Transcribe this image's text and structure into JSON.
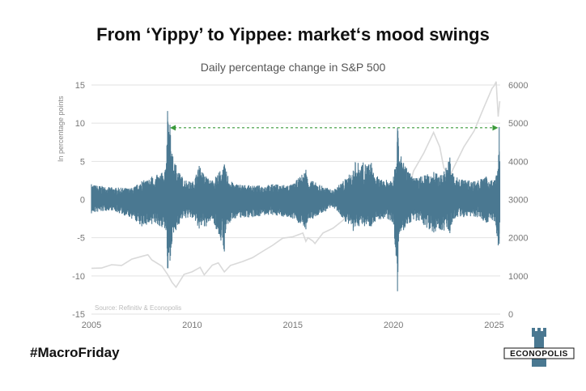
{
  "title": "From ‘Yippy’ to Yippee: market‘s mood swings",
  "hashtag": "#MacroFriday",
  "brand": "ECONOPOLIS",
  "colors": {
    "series": "#4a7891",
    "index": "#d9d9d9",
    "annotation": "#3a9a3a",
    "grid": "#e2e2e2"
  },
  "chart_data": {
    "type": "line",
    "title": "Daily percentage change in S&P 500",
    "ylabel": "In percentage points",
    "source": "Source: Refinitiv & Econopolis",
    "xlim": [
      2005,
      2025.3
    ],
    "xticks": [
      2005,
      2010,
      2015,
      2020,
      2025
    ],
    "ylim": [
      -15,
      15
    ],
    "yticks": [
      15,
      10,
      5,
      0,
      -5,
      -10,
      -15
    ],
    "y2lim": [
      0,
      6000
    ],
    "y2ticks": [
      6000,
      5000,
      4000,
      3000,
      2000,
      1000,
      0
    ],
    "series": [
      {
        "axis": "left",
        "style": "daily-change",
        "x": [
          2005.0,
          2006.0,
          2007.0,
          2007.5,
          2008.0,
          2008.5,
          2008.7,
          2008.78,
          2008.8,
          2008.9,
          2009.0,
          2009.2,
          2009.5,
          2010.0,
          2010.35,
          2010.7,
          2011.0,
          2011.6,
          2011.65,
          2012.0,
          2013.0,
          2014.0,
          2015.0,
          2015.65,
          2015.7,
          2016.0,
          2017.0,
          2018.0,
          2018.1,
          2018.9,
          2019.0,
          2019.5,
          2020.0,
          2020.2,
          2020.22,
          2020.25,
          2020.5,
          2021.0,
          2022.0,
          2022.4,
          2022.8,
          2023.0,
          2024.0,
          2024.6,
          2025.0,
          2025.2,
          2025.25,
          2025.28
        ],
        "high": [
          2.0,
          1.6,
          1.5,
          2.4,
          3.0,
          3.5,
          4.0,
          11.6,
          10.0,
          9.8,
          6.0,
          4.5,
          3.0,
          2.2,
          4.4,
          3.0,
          2.5,
          4.6,
          4.0,
          2.2,
          1.8,
          2.0,
          2.0,
          3.9,
          3.0,
          2.4,
          1.2,
          3.8,
          4.9,
          4.8,
          3.5,
          2.4,
          3.0,
          9.4,
          9.0,
          7.0,
          4.8,
          2.8,
          3.6,
          3.2,
          5.5,
          3.0,
          2.4,
          3.0,
          2.5,
          4.0,
          9.5,
          5.0
        ],
        "low": [
          -1.8,
          -1.4,
          -2.5,
          -3.5,
          -3.2,
          -3.6,
          -4.0,
          -9.0,
          -9.0,
          -8.0,
          -5.5,
          -4.0,
          -2.5,
          -2.4,
          -3.8,
          -3.5,
          -2.5,
          -6.8,
          -4.4,
          -2.5,
          -2.3,
          -2.0,
          -2.5,
          -3.9,
          -3.0,
          -2.5,
          -1.0,
          -4.1,
          -3.5,
          -3.5,
          -3.0,
          -2.5,
          -3.0,
          -12.0,
          -9.5,
          -5.5,
          -4.0,
          -2.6,
          -4.3,
          -4.0,
          -4.4,
          -2.5,
          -2.2,
          -3.0,
          -2.8,
          -6.0,
          -5.8,
          -3.0
        ]
      },
      {
        "axis": "right",
        "style": "index-level",
        "x": [
          2005.0,
          2005.5,
          2006.0,
          2006.5,
          2007.0,
          2007.5,
          2007.8,
          2008.0,
          2008.5,
          2008.8,
          2009.0,
          2009.2,
          2009.6,
          2010.0,
          2010.4,
          2010.6,
          2011.0,
          2011.3,
          2011.6,
          2011.9,
          2012.5,
          2013.0,
          2013.5,
          2014.0,
          2014.5,
          2015.0,
          2015.5,
          2015.65,
          2015.75,
          2016.0,
          2016.1,
          2016.5,
          2017.0,
          2017.5,
          2018.0,
          2018.1,
          2018.7,
          2018.95,
          2019.0,
          2019.5,
          2020.0,
          2020.15,
          2020.22,
          2020.5,
          2020.8,
          2021.0,
          2021.5,
          2021.99,
          2022.3,
          2022.5,
          2022.8,
          2023.0,
          2023.5,
          2024.0,
          2024.5,
          2024.9,
          2025.0,
          2025.1,
          2025.2,
          2025.28
        ],
        "values": [
          1200,
          1220,
          1270,
          1300,
          1420,
          1520,
          1560,
          1400,
          1280,
          1000,
          850,
          700,
          1030,
          1130,
          1200,
          1050,
          1270,
          1340,
          1120,
          1250,
          1400,
          1460,
          1650,
          1810,
          1970,
          2050,
          2100,
          1920,
          2000,
          1900,
          1870,
          2100,
          2270,
          2450,
          2820,
          2650,
          2900,
          2420,
          2600,
          2950,
          3230,
          3380,
          2240,
          3100,
          3400,
          3750,
          4200,
          4780,
          4350,
          3850,
          3600,
          3840,
          4400,
          4770,
          5450,
          5900,
          5980,
          6100,
          5150,
          5600
        ]
      }
    ],
    "annotation": {
      "type": "dashed-double-arrow",
      "x": [
        2008.9,
        2025.2
      ],
      "y": 9.4
    }
  }
}
